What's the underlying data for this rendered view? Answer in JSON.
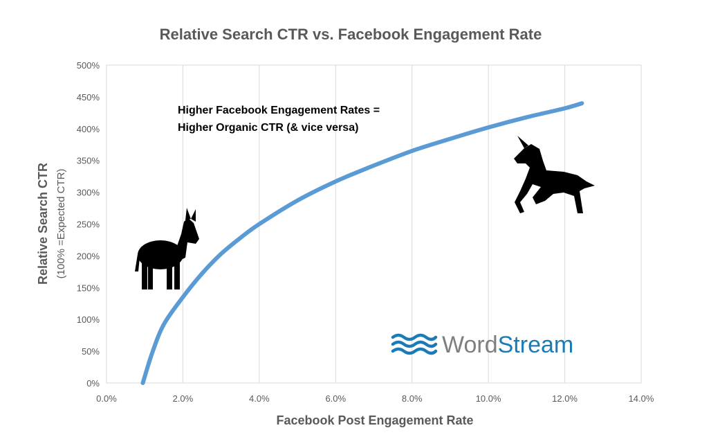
{
  "chart_data": {
    "type": "line",
    "title": "Relative Search CTR vs. Facebook Engagement Rate",
    "xlabel": "Facebook Post Engagement Rate",
    "ylabel": "Relative Search CTR",
    "ylabel_sub": "(100% =Expected CTR)",
    "xlim": [
      0,
      14
    ],
    "ylim": [
      0,
      500
    ],
    "x_ticks": [
      0,
      2,
      4,
      6,
      8,
      10,
      12,
      14
    ],
    "y_ticks": [
      0,
      50,
      100,
      150,
      200,
      250,
      300,
      350,
      400,
      450,
      500
    ],
    "x_tick_labels": [
      "0.0%",
      "2.0%",
      "4.0%",
      "6.0%",
      "8.0%",
      "10.0%",
      "12.0%",
      "14.0%"
    ],
    "y_tick_labels": [
      "0%",
      "50%",
      "100%",
      "150%",
      "200%",
      "250%",
      "300%",
      "350%",
      "400%",
      "450%",
      "500%"
    ],
    "grid": "vertical",
    "series": [
      {
        "color": "#5b9bd5",
        "x": [
          0.95,
          1.2,
          1.5,
          2.0,
          2.5,
          3.0,
          3.5,
          4.0,
          5.0,
          6.0,
          7.0,
          8.0,
          9.0,
          10.0,
          11.0,
          12.0,
          12.45
        ],
        "y": [
          0,
          48,
          92,
          135,
          172,
          203,
          228,
          250,
          287,
          317,
          342,
          365,
          384,
          402,
          418,
          432,
          440
        ]
      }
    ],
    "annotation": {
      "line1": "Higher Facebook Engagement Rates =",
      "line2": "Higher Organic CTR (& vice versa)"
    }
  },
  "logo": {
    "word1": "Word",
    "word2": "Stream",
    "color1": "#7f7f7f",
    "color2": "#1b7bb7"
  },
  "icons": [
    "donkey-icon",
    "unicorn-icon",
    "wordstream-waves-icon"
  ]
}
